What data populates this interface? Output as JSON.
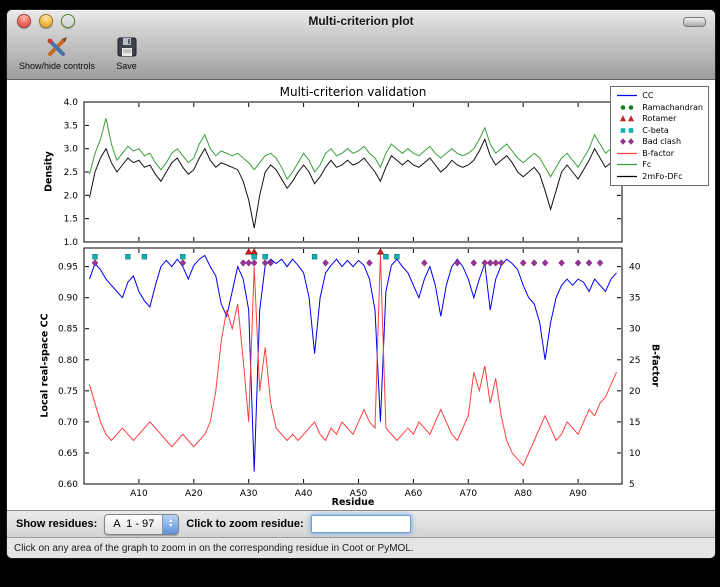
{
  "window": {
    "title": "Multi-criterion plot",
    "toolbar": {
      "show_hide_label": "Show/hide controls",
      "save_label": "Save"
    },
    "controls": {
      "show_residues_label": "Show residues:",
      "chain_range_value": "A  1 - 97",
      "zoom_label": "Click to zoom residue:",
      "zoom_value": ""
    },
    "status_text": "Click on any area of the graph to zoom in on the corresponding residue in Coot or PyMOL."
  },
  "figure": {
    "title": "Multi-criterion validation",
    "legend_position": "upper right",
    "legend": [
      {
        "label": "CC",
        "marker": "line",
        "color": "#0000ee"
      },
      {
        "label": "Ramachandran",
        "marker": "circle",
        "color": "#108510"
      },
      {
        "label": "Rotamer",
        "marker": "triangle",
        "color": "#cc2020"
      },
      {
        "label": "C-beta",
        "marker": "square",
        "color": "#10b2b2"
      },
      {
        "label": "Bad clash",
        "marker": "diamond",
        "color": "#993399"
      },
      {
        "label": "B-factor",
        "marker": "line",
        "color": "#ff4040"
      },
      {
        "label": "Fc",
        "marker": "line",
        "color": "#3aa03a"
      },
      {
        "label": "2mFo-DFc",
        "marker": "line",
        "color": "#000000"
      }
    ]
  },
  "chart_data": [
    {
      "type": "line",
      "title": "Multi-criterion validation",
      "ylabel": "Density",
      "ylim": [
        1.0,
        4.0
      ],
      "yticks": [
        1.0,
        1.5,
        2.0,
        2.5,
        3.0,
        3.5,
        4.0
      ],
      "ytick_labels": [
        "1.0",
        "1.5",
        "2.0",
        "2.5",
        "3.0",
        "3.5",
        "4.0"
      ],
      "xlim": [
        0,
        98
      ],
      "grid": false,
      "x": [
        1,
        2,
        3,
        4,
        5,
        6,
        7,
        8,
        9,
        10,
        11,
        12,
        13,
        14,
        15,
        16,
        17,
        18,
        19,
        20,
        21,
        22,
        23,
        24,
        25,
        26,
        27,
        28,
        29,
        30,
        31,
        32,
        33,
        34,
        35,
        36,
        37,
        38,
        39,
        40,
        41,
        42,
        43,
        44,
        45,
        46,
        47,
        48,
        49,
        50,
        51,
        52,
        53,
        54,
        55,
        56,
        57,
        58,
        59,
        60,
        61,
        62,
        63,
        64,
        65,
        66,
        67,
        68,
        69,
        70,
        71,
        72,
        73,
        74,
        75,
        76,
        77,
        78,
        79,
        80,
        81,
        82,
        83,
        84,
        85,
        86,
        87,
        88,
        89,
        90,
        91,
        92,
        93,
        94,
        95,
        96,
        97
      ],
      "series": [
        {
          "name": "Fc",
          "color": "#3aa03a",
          "values": [
            2.45,
            2.9,
            3.2,
            3.65,
            3.1,
            2.75,
            2.9,
            3.05,
            2.95,
            3.0,
            2.85,
            2.9,
            2.7,
            2.55,
            2.7,
            2.9,
            3.0,
            2.85,
            2.7,
            2.8,
            3.1,
            3.3,
            3.0,
            2.85,
            2.95,
            2.9,
            2.85,
            2.9,
            2.8,
            2.7,
            2.55,
            2.7,
            2.85,
            2.9,
            2.8,
            2.6,
            2.35,
            2.5,
            2.7,
            2.9,
            2.75,
            2.5,
            2.65,
            2.9,
            3.0,
            2.85,
            2.9,
            3.0,
            2.9,
            2.95,
            3.05,
            2.9,
            2.8,
            2.6,
            2.9,
            3.1,
            3.0,
            2.9,
            3.0,
            2.9,
            2.85,
            2.95,
            3.05,
            2.9,
            2.8,
            2.9,
            3.0,
            2.9,
            2.85,
            2.9,
            3.0,
            3.2,
            3.45,
            3.1,
            2.9,
            3.0,
            3.1,
            2.95,
            2.8,
            2.7,
            2.8,
            2.9,
            2.8,
            2.6,
            2.4,
            2.6,
            2.8,
            2.9,
            2.75,
            2.6,
            2.8,
            3.0,
            3.3,
            3.1,
            2.9,
            3.0,
            3.1
          ]
        },
        {
          "name": "2mFo-DFc",
          "color": "#111111",
          "values": [
            1.95,
            2.5,
            2.8,
            3.0,
            2.7,
            2.5,
            2.65,
            2.8,
            2.7,
            2.75,
            2.6,
            2.65,
            2.45,
            2.3,
            2.5,
            2.7,
            2.8,
            2.6,
            2.45,
            2.55,
            2.8,
            3.0,
            2.75,
            2.6,
            2.7,
            2.65,
            2.6,
            2.55,
            2.3,
            1.9,
            1.3,
            2.0,
            2.5,
            2.65,
            2.55,
            2.35,
            2.15,
            2.3,
            2.5,
            2.65,
            2.5,
            2.25,
            2.4,
            2.6,
            2.75,
            2.6,
            2.65,
            2.75,
            2.65,
            2.7,
            2.8,
            2.65,
            2.5,
            2.3,
            2.6,
            2.85,
            2.75,
            2.65,
            2.75,
            2.65,
            2.6,
            2.7,
            2.8,
            2.65,
            2.5,
            2.6,
            2.75,
            2.65,
            2.6,
            2.65,
            2.75,
            2.95,
            3.2,
            2.85,
            2.65,
            2.75,
            2.85,
            2.7,
            2.5,
            2.4,
            2.5,
            2.6,
            2.45,
            2.1,
            1.7,
            2.1,
            2.5,
            2.65,
            2.5,
            2.35,
            2.55,
            2.75,
            3.0,
            2.8,
            2.6,
            2.7,
            2.85
          ]
        }
      ]
    },
    {
      "type": "line",
      "xlabel": "Residue",
      "ylabel": "Local real-space CC",
      "y2label": "B-factor",
      "ylim": [
        0.6,
        0.98
      ],
      "yticks": [
        0.6,
        0.65,
        0.7,
        0.75,
        0.8,
        0.85,
        0.9,
        0.95
      ],
      "ytick_labels": [
        "0.60",
        "0.65",
        "0.70",
        "0.75",
        "0.80",
        "0.85",
        "0.90",
        "0.95"
      ],
      "y2lim": [
        5,
        43
      ],
      "y2ticks": [
        5,
        10,
        15,
        20,
        25,
        30,
        35,
        40
      ],
      "y2tick_labels": [
        "5",
        "10",
        "15",
        "20",
        "25",
        "30",
        "35",
        "40"
      ],
      "xlim": [
        0,
        98
      ],
      "xticks": [
        10,
        20,
        30,
        40,
        50,
        60,
        70,
        80,
        90
      ],
      "xtick_labels": [
        "A10",
        "A20",
        "A30",
        "A40",
        "A50",
        "A60",
        "A70",
        "A80",
        "A90"
      ],
      "grid": false,
      "x": [
        1,
        2,
        3,
        4,
        5,
        6,
        7,
        8,
        9,
        10,
        11,
        12,
        13,
        14,
        15,
        16,
        17,
        18,
        19,
        20,
        21,
        22,
        23,
        24,
        25,
        26,
        27,
        28,
        29,
        30,
        31,
        32,
        33,
        34,
        35,
        36,
        37,
        38,
        39,
        40,
        41,
        42,
        43,
        44,
        45,
        46,
        47,
        48,
        49,
        50,
        51,
        52,
        53,
        54,
        55,
        56,
        57,
        58,
        59,
        60,
        61,
        62,
        63,
        64,
        65,
        66,
        67,
        68,
        69,
        70,
        71,
        72,
        73,
        74,
        75,
        76,
        77,
        78,
        79,
        80,
        81,
        82,
        83,
        84,
        85,
        86,
        87,
        88,
        89,
        90,
        91,
        92,
        93,
        94,
        95,
        96,
        97
      ],
      "series": [
        {
          "name": "CC",
          "axis": "left",
          "color": "#0000ee",
          "values": [
            0.93,
            0.955,
            0.945,
            0.93,
            0.92,
            0.91,
            0.9,
            0.925,
            0.935,
            0.91,
            0.895,
            0.885,
            0.92,
            0.95,
            0.96,
            0.95,
            0.962,
            0.95,
            0.93,
            0.952,
            0.962,
            0.968,
            0.95,
            0.935,
            0.89,
            0.87,
            0.91,
            0.95,
            0.93,
            0.88,
            0.62,
            0.88,
            0.952,
            0.962,
            0.955,
            0.962,
            0.95,
            0.962,
            0.952,
            0.94,
            0.9,
            0.81,
            0.9,
            0.94,
            0.952,
            0.962,
            0.95,
            0.96,
            0.95,
            0.96,
            0.952,
            0.93,
            0.88,
            0.7,
            0.91,
            0.952,
            0.962,
            0.95,
            0.94,
            0.92,
            0.9,
            0.93,
            0.95,
            0.92,
            0.87,
            0.92,
            0.95,
            0.962,
            0.95,
            0.93,
            0.9,
            0.93,
            0.955,
            0.88,
            0.93,
            0.952,
            0.962,
            0.955,
            0.945,
            0.92,
            0.9,
            0.89,
            0.86,
            0.8,
            0.86,
            0.9,
            0.92,
            0.93,
            0.92,
            0.93,
            0.925,
            0.91,
            0.93,
            0.92,
            0.91,
            0.93,
            0.94
          ]
        },
        {
          "name": "B-factor",
          "axis": "right",
          "color": "#ff4040",
          "values": [
            21,
            18,
            15,
            13,
            12,
            13,
            14,
            13,
            12,
            13,
            14,
            15,
            14,
            13,
            12,
            11,
            12,
            13,
            12,
            11,
            12,
            13,
            15,
            20,
            28,
            33,
            30,
            34,
            25,
            15,
            40,
            20,
            27,
            18,
            14,
            13,
            12,
            13,
            12,
            13,
            14,
            15,
            13,
            12,
            14,
            13,
            15,
            14,
            13,
            15,
            17,
            15,
            14,
            42,
            14,
            13,
            12,
            13,
            14,
            13,
            15,
            14,
            13,
            15,
            17,
            15,
            13,
            12,
            14,
            16,
            23,
            20,
            24,
            18,
            22,
            16,
            12,
            10,
            9,
            8,
            10,
            12,
            14,
            16,
            14,
            12,
            13,
            15,
            14,
            13,
            15,
            17,
            16,
            18,
            19,
            21,
            23
          ]
        }
      ],
      "markers": [
        {
          "name": "Rotamer",
          "shape": "triangle",
          "color": "#cc2020",
          "y": 0.974,
          "residues": [
            30,
            31,
            54
          ]
        },
        {
          "name": "C-beta",
          "shape": "square",
          "color": "#10b2b2",
          "y": 0.966,
          "residues": [
            2,
            8,
            11,
            18,
            31,
            33,
            42,
            55,
            57
          ]
        },
        {
          "name": "Bad clash",
          "shape": "diamond",
          "color": "#993399",
          "y": 0.956,
          "residues": [
            2,
            18,
            29,
            30,
            31,
            33,
            34,
            44,
            52,
            62,
            68,
            71,
            73,
            74,
            75,
            76,
            80,
            82,
            84,
            87,
            90,
            92,
            94
          ]
        },
        {
          "name": "Ramachandran",
          "shape": "circle",
          "color": "#108510",
          "y": 0.974,
          "residues": []
        }
      ]
    }
  ]
}
